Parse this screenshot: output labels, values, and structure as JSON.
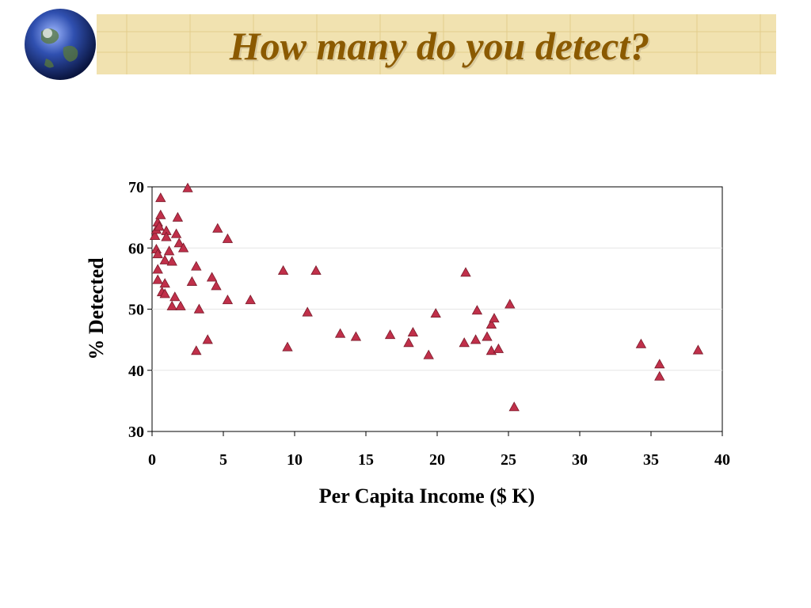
{
  "slide": {
    "title": "How many do you detect?",
    "banner_color": "#F1E2B0",
    "title_color": "#8B5A00",
    "globe_icon": "globe-icon"
  },
  "chart_data": {
    "type": "scatter",
    "title": "",
    "xlabel": "Per Capita Income ($ K)",
    "ylabel": "% Detected",
    "xlim": [
      0,
      40
    ],
    "ylim": [
      30,
      70
    ],
    "xticks": [
      0,
      5,
      10,
      15,
      20,
      25,
      30,
      35,
      40
    ],
    "yticks": [
      30,
      40,
      50,
      60,
      70
    ],
    "marker": "triangle",
    "marker_color": "#C0304A",
    "grid": "horizontal",
    "legend": "none",
    "series": [
      {
        "points": [
          [
            0.2,
            62.0
          ],
          [
            0.3,
            63.0
          ],
          [
            0.4,
            64.2
          ],
          [
            0.5,
            63.5
          ],
          [
            0.6,
            68.2
          ],
          [
            0.6,
            65.4
          ],
          [
            0.3,
            59.8
          ],
          [
            0.4,
            59.0
          ],
          [
            0.4,
            56.5
          ],
          [
            0.4,
            54.8
          ],
          [
            0.7,
            52.8
          ],
          [
            0.9,
            52.5
          ],
          [
            0.9,
            54.2
          ],
          [
            0.9,
            58.0
          ],
          [
            1.0,
            62.8
          ],
          [
            1.0,
            61.8
          ],
          [
            1.2,
            59.5
          ],
          [
            1.4,
            57.8
          ],
          [
            1.4,
            50.5
          ],
          [
            1.6,
            52.0
          ],
          [
            1.7,
            62.3
          ],
          [
            1.8,
            65.0
          ],
          [
            1.9,
            60.8
          ],
          [
            2.0,
            50.5
          ],
          [
            2.2,
            60.0
          ],
          [
            2.5,
            69.8
          ],
          [
            2.8,
            54.5
          ],
          [
            3.1,
            57.0
          ],
          [
            3.1,
            43.2
          ],
          [
            3.3,
            50.0
          ],
          [
            3.9,
            45.0
          ],
          [
            4.2,
            55.2
          ],
          [
            4.5,
            53.8
          ],
          [
            4.6,
            63.2
          ],
          [
            5.3,
            61.5
          ],
          [
            5.3,
            51.5
          ],
          [
            6.9,
            51.5
          ],
          [
            9.2,
            56.3
          ],
          [
            9.5,
            43.8
          ],
          [
            10.9,
            49.5
          ],
          [
            11.5,
            56.3
          ],
          [
            13.2,
            46.0
          ],
          [
            14.3,
            45.5
          ],
          [
            16.7,
            45.8
          ],
          [
            18.0,
            44.5
          ],
          [
            18.3,
            46.2
          ],
          [
            19.4,
            42.5
          ],
          [
            19.9,
            49.3
          ],
          [
            21.9,
            44.5
          ],
          [
            22.0,
            56.0
          ],
          [
            22.7,
            45.0
          ],
          [
            22.8,
            49.8
          ],
          [
            23.5,
            45.5
          ],
          [
            23.8,
            43.2
          ],
          [
            23.8,
            47.5
          ],
          [
            24.0,
            48.5
          ],
          [
            24.3,
            43.5
          ],
          [
            25.1,
            50.8
          ],
          [
            25.4,
            34.0
          ],
          [
            34.3,
            44.3
          ],
          [
            35.6,
            41.0
          ],
          [
            35.6,
            39.0
          ],
          [
            38.3,
            43.3
          ]
        ]
      }
    ]
  }
}
